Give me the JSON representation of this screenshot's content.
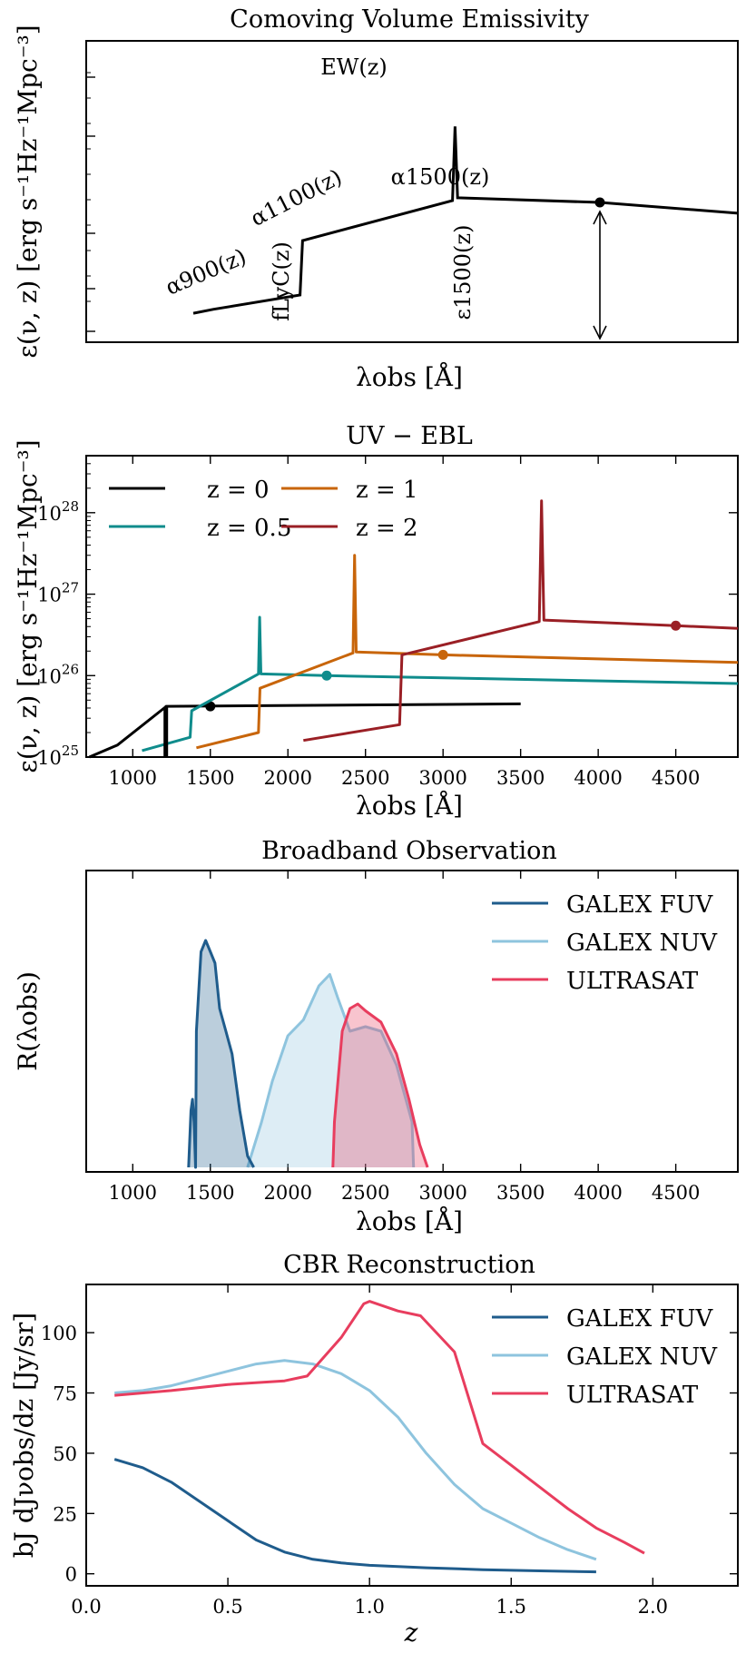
{
  "colors": {
    "black": "#000000",
    "teal": "#0f8c8c",
    "orange": "#c8650a",
    "darkred": "#9a1f25",
    "fuv": "#1f5c8c",
    "nuv": "#8ec4de",
    "ultrasat": "#e83d5e"
  },
  "chart_data": [
    {
      "type": "line",
      "title": "Comoving Volume Emissivity",
      "xlabel": "λobs [Å]",
      "ylabel": "ε(ν, z) [erg s⁻¹Hz⁻¹Mpc⁻³]",
      "yscale": "log",
      "ticks_labeled": false,
      "annotations": [
        "EW(z)",
        "α1500(z)",
        "α1100(z)",
        "α900(z)",
        "fLyC(z)",
        "ε1500(z)"
      ],
      "series": [
        {
          "points": [
            [
              1400,
              0.45
            ],
            [
              1480,
              0.47
            ],
            [
              1820,
              0.55
            ],
            [
              1830,
              1.0
            ],
            [
              2420,
              1.55
            ],
            [
              2430,
              3.5
            ],
            [
              2440,
              1.6
            ],
            [
              3000,
              1.52
            ],
            [
              5000,
              1.35
            ]
          ]
        }
      ],
      "marker": [
        3000,
        1.52
      ],
      "arrow_range": [
        0.3,
        1.52
      ]
    },
    {
      "type": "line",
      "title": "UV − EBL",
      "xlabel": "λobs [Å]",
      "ylabel": "ε(ν, z) [erg s⁻¹Hz⁻¹Mpc⁻³]",
      "yscale": "log",
      "xlim": [
        700,
        4900
      ],
      "ylim_exp": [
        25,
        28.7
      ],
      "xticks": [
        "1000",
        "1500",
        "2000",
        "2500",
        "3000",
        "3500",
        "4000",
        "4500"
      ],
      "yticks": [
        {
          "base": "10",
          "exp": "25"
        },
        {
          "base": "10",
          "exp": "26"
        },
        {
          "base": "10",
          "exp": "27"
        },
        {
          "base": "10",
          "exp": "28"
        }
      ],
      "legend": [
        "z = 0",
        "z = 0.5",
        "z = 1",
        "z = 2"
      ],
      "legend_position": "top-left",
      "series": [
        {
          "name": "z = 0",
          "points": [
            [
              720,
              1e+25
            ],
            [
              900,
              1.4e+25
            ],
            [
              1210,
              4.1e+25
            ],
            [
              1215,
              4.2e+25
            ],
            [
              3500,
              4.5e+25
            ]
          ],
          "marker": [
            1500,
            4.2e+25
          ]
        },
        {
          "name": "z = 0.5",
          "points": [
            [
              1060,
              1.2e+25
            ],
            [
              1370,
              1.75e+25
            ],
            [
              1380,
              3.7e+25
            ],
            [
              1810,
              1.05e+26
            ],
            [
              1818,
              5.2e+26
            ],
            [
              1826,
              1.05e+26
            ],
            [
              2250,
              1e+26
            ],
            [
              4900,
              8e+25
            ]
          ],
          "marker": [
            2250,
            1e+26
          ]
        },
        {
          "name": "z = 1",
          "points": [
            [
              1410,
              1.3e+25
            ],
            [
              1810,
              2e+25
            ],
            [
              1820,
              7e+25
            ],
            [
              2420,
              1.9e+26
            ],
            [
              2430,
              3e+27
            ],
            [
              2440,
              1.95e+26
            ],
            [
              3000,
              1.8e+26
            ],
            [
              4900,
              1.45e+26
            ]
          ],
          "marker": [
            3000,
            1.8e+26
          ]
        },
        {
          "name": "z = 2",
          "points": [
            [
              2100,
              1.6e+25
            ],
            [
              2720,
              2.5e+25
            ],
            [
              2735,
              1.8e+26
            ],
            [
              3620,
              4.6e+26
            ],
            [
              3635,
              1.4e+28
            ],
            [
              3650,
              4.8e+26
            ],
            [
              4500,
              4.1e+26
            ],
            [
              4900,
              3.8e+26
            ]
          ],
          "marker": [
            4500,
            4.1e+26
          ]
        }
      ]
    },
    {
      "type": "area",
      "title": "Broadband Observation",
      "xlabel": "λobs [Å]",
      "ylabel": "R(λobs)",
      "xlim": [
        700,
        4900
      ],
      "xticks": [
        "1000",
        "1500",
        "2000",
        "2500",
        "3000",
        "3500",
        "4000",
        "4500"
      ],
      "legend": [
        "GALEX FUV",
        "GALEX NUV",
        "ULTRASAT"
      ],
      "legend_position": "top-right",
      "series": [
        {
          "name": "GALEX FUV",
          "points": [
            [
              1360,
              0.0
            ],
            [
              1375,
              0.25
            ],
            [
              1385,
              0.3
            ],
            [
              1395,
              0.2
            ],
            [
              1405,
              0.0
            ],
            [
              1410,
              0.6
            ],
            [
              1440,
              0.95
            ],
            [
              1470,
              1.0
            ],
            [
              1500,
              0.95
            ],
            [
              1530,
              0.9
            ],
            [
              1560,
              0.7
            ],
            [
              1600,
              0.6
            ],
            [
              1640,
              0.5
            ],
            [
              1690,
              0.25
            ],
            [
              1740,
              0.05
            ],
            [
              1780,
              0.0
            ]
          ]
        },
        {
          "name": "GALEX NUV",
          "points": [
            [
              1740,
              0.0
            ],
            [
              1830,
              0.2
            ],
            [
              1900,
              0.38
            ],
            [
              2000,
              0.58
            ],
            [
              2100,
              0.65
            ],
            [
              2200,
              0.8
            ],
            [
              2270,
              0.85
            ],
            [
              2320,
              0.75
            ],
            [
              2400,
              0.6
            ],
            [
              2500,
              0.62
            ],
            [
              2600,
              0.6
            ],
            [
              2700,
              0.45
            ],
            [
              2800,
              0.2
            ],
            [
              2810,
              0.0
            ]
          ]
        },
        {
          "name": "ULTRASAT",
          "points": [
            [
              2290,
              0.0
            ],
            [
              2300,
              0.2
            ],
            [
              2350,
              0.6
            ],
            [
              2400,
              0.7
            ],
            [
              2450,
              0.72
            ],
            [
              2500,
              0.69
            ],
            [
              2600,
              0.64
            ],
            [
              2700,
              0.5
            ],
            [
              2780,
              0.3
            ],
            [
              2850,
              0.1
            ],
            [
              2900,
              0.0
            ]
          ]
        }
      ]
    },
    {
      "type": "line",
      "title": "CBR Reconstruction",
      "xlabel": "z",
      "ylabel": "bJ dJνobs/dz [Jy/sr]",
      "xlim": [
        0.0,
        2.3
      ],
      "ylim": [
        -5,
        120
      ],
      "xticks": [
        "0.0",
        "0.5",
        "1.0",
        "1.5",
        "2.0"
      ],
      "yticks": [
        "0",
        "25",
        "50",
        "75",
        "100"
      ],
      "legend": [
        "GALEX FUV",
        "GALEX NUV",
        "ULTRASAT"
      ],
      "legend_position": "top-right",
      "series": [
        {
          "name": "GALEX FUV",
          "points": [
            [
              0.1,
              47.5
            ],
            [
              0.2,
              44
            ],
            [
              0.3,
              38
            ],
            [
              0.4,
              30
            ],
            [
              0.5,
              22
            ],
            [
              0.6,
              14
            ],
            [
              0.7,
              9
            ],
            [
              0.8,
              6
            ],
            [
              0.9,
              4.5
            ],
            [
              1.0,
              3.5
            ],
            [
              1.2,
              2.5
            ],
            [
              1.4,
              1.7
            ],
            [
              1.6,
              1.2
            ],
            [
              1.8,
              0.8
            ]
          ]
        },
        {
          "name": "GALEX NUV",
          "points": [
            [
              0.1,
              75
            ],
            [
              0.2,
              76
            ],
            [
              0.3,
              78
            ],
            [
              0.4,
              81
            ],
            [
              0.5,
              84
            ],
            [
              0.6,
              87
            ],
            [
              0.7,
              88.5
            ],
            [
              0.8,
              87
            ],
            [
              0.9,
              83
            ],
            [
              1.0,
              76
            ],
            [
              1.1,
              65
            ],
            [
              1.2,
              50
            ],
            [
              1.3,
              37
            ],
            [
              1.4,
              27
            ],
            [
              1.5,
              21
            ],
            [
              1.6,
              15
            ],
            [
              1.7,
              10
            ],
            [
              1.8,
              6
            ]
          ]
        },
        {
          "name": "ULTRASAT",
          "points": [
            [
              0.1,
              74
            ],
            [
              0.3,
              76
            ],
            [
              0.5,
              78.5
            ],
            [
              0.7,
              80
            ],
            [
              0.78,
              82
            ],
            [
              0.9,
              98
            ],
            [
              0.98,
              112
            ],
            [
              1.0,
              113
            ],
            [
              1.1,
              109
            ],
            [
              1.18,
              107
            ],
            [
              1.3,
              92
            ],
            [
              1.4,
              54
            ],
            [
              1.5,
              45
            ],
            [
              1.6,
              36
            ],
            [
              1.7,
              27
            ],
            [
              1.8,
              19
            ],
            [
              1.9,
              13
            ],
            [
              1.97,
              8.5
            ]
          ]
        }
      ]
    }
  ]
}
